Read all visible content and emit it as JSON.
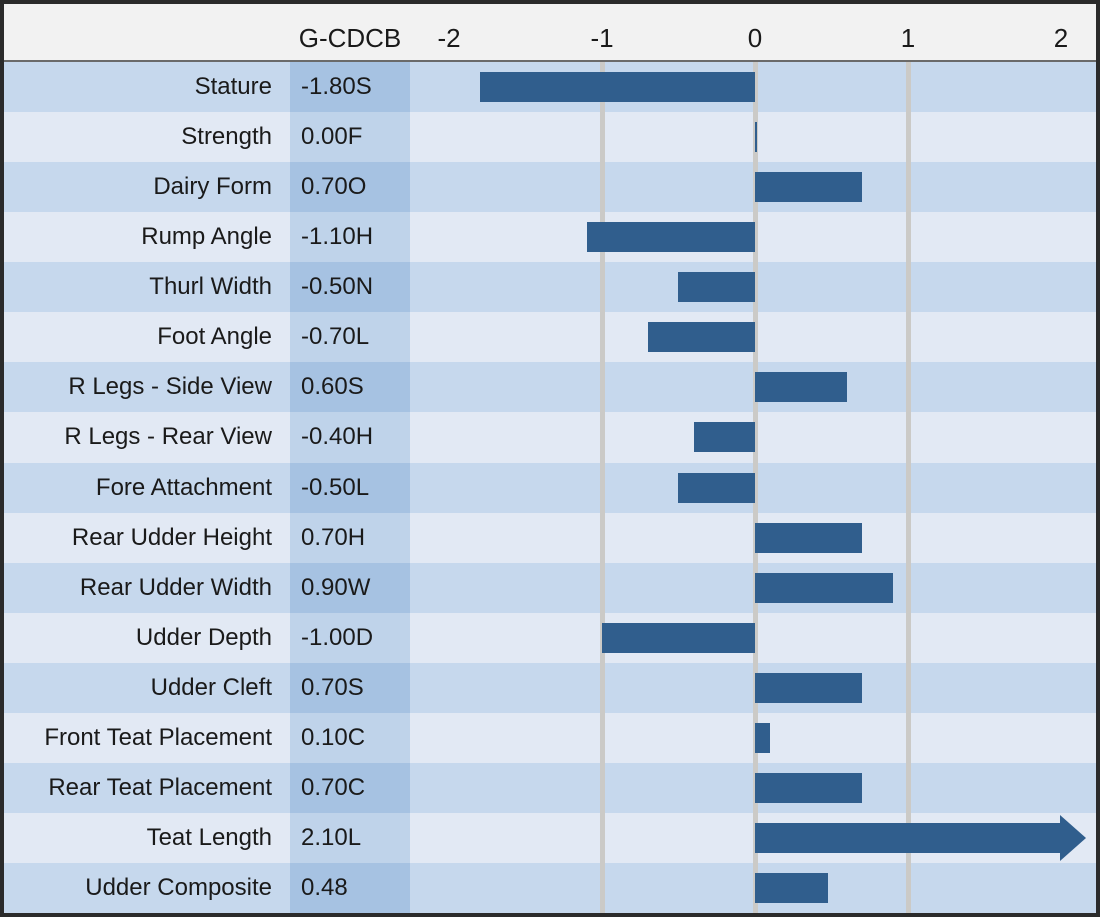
{
  "header": {
    "score_column_label": "G-CDCB",
    "axis_tick_labels": [
      "-2",
      "-1",
      "0",
      "1",
      "2"
    ]
  },
  "chart_data": {
    "type": "bar",
    "orientation": "horizontal",
    "value_column_header": "G-CDCB",
    "x_axis": {
      "tick_values": [
        -2,
        -1,
        0,
        1,
        2
      ],
      "range": [
        -2.25,
        2.25
      ],
      "gridlines_at": [
        -1,
        0,
        1
      ],
      "grid": true
    },
    "legend_position": "none",
    "rows": [
      {
        "trait": "Stature",
        "value_label": "-1.80S",
        "value": -1.8
      },
      {
        "trait": "Strength",
        "value_label": "0.00F",
        "value": 0.0
      },
      {
        "trait": "Dairy Form",
        "value_label": "0.70O",
        "value": 0.7
      },
      {
        "trait": "Rump Angle",
        "value_label": "-1.10H",
        "value": -1.1
      },
      {
        "trait": "Thurl Width",
        "value_label": "-0.50N",
        "value": -0.5
      },
      {
        "trait": "Foot Angle",
        "value_label": "-0.70L",
        "value": -0.7
      },
      {
        "trait": "R Legs - Side View",
        "value_label": "0.60S",
        "value": 0.6
      },
      {
        "trait": "R Legs - Rear View",
        "value_label": "-0.40H",
        "value": -0.4
      },
      {
        "trait": "Fore Attachment",
        "value_label": "-0.50L",
        "value": -0.5
      },
      {
        "trait": "Rear Udder Height",
        "value_label": "0.70H",
        "value": 0.7
      },
      {
        "trait": "Rear Udder Width",
        "value_label": "0.90W",
        "value": 0.9
      },
      {
        "trait": "Udder Depth",
        "value_label": "-1.00D",
        "value": -1.0
      },
      {
        "trait": "Udder Cleft",
        "value_label": "0.70S",
        "value": 0.7
      },
      {
        "trait": "Front Teat Placement",
        "value_label": "0.10C",
        "value": 0.1
      },
      {
        "trait": "Rear Teat Placement",
        "value_label": "0.70C",
        "value": 0.7
      },
      {
        "trait": "Teat Length",
        "value_label": "2.10L",
        "value": 2.1,
        "overflow_arrow": true
      },
      {
        "trait": "Udder Composite",
        "value_label": "0.48",
        "value": 0.48
      }
    ]
  },
  "colors": {
    "bar": "#305e8d",
    "row_stripe_dark": "#c6d8ed",
    "row_stripe_light": "#e2e9f4",
    "value_cell_dark": "#a6c2e2",
    "value_cell_light": "#bfd3ea",
    "gridline": "#cbcac7",
    "header_background": "#f2f2f2",
    "text": "#1a1a1a",
    "frame_border": "#2b2b2b"
  }
}
